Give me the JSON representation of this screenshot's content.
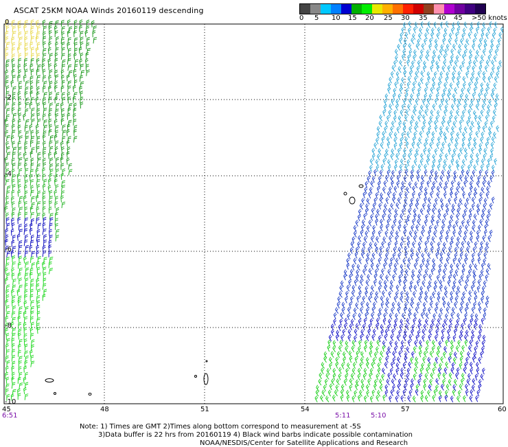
{
  "title": "ASCAT 25KM NOAA Winds 20160119 descending",
  "colorbar": {
    "colors": [
      "#444444",
      "#888888",
      "#00c8ff",
      "#0080ff",
      "#0000d0",
      "#00b000",
      "#00ee00",
      "#e8e800",
      "#ffb000",
      "#ff7000",
      "#ff2000",
      "#d00000",
      "#904020",
      "#ff90b0",
      "#b000d0",
      "#7000a0",
      "#400080",
      "#200050"
    ],
    "labels": [
      "0",
      "5",
      "10",
      "15",
      "20",
      "25",
      "30",
      "35",
      "40",
      "45",
      ">50 knots"
    ]
  },
  "axes": {
    "x_ticks": [
      "45",
      "48",
      "51",
      "54",
      "57",
      "60"
    ],
    "y_ticks": [
      "0",
      "-2",
      "-4",
      "-6",
      "-8",
      "-10"
    ]
  },
  "time_labels": [
    "6:51",
    "5:11",
    "5:10"
  ],
  "notes": [
    "Note: 1) Times are GMT 2)Times along bottom correspond to measurement at -5S",
    "3)Data buffer is 22 hrs from 20160119 4) Black wind barbs indicate possible contamination",
    "NOAA/NESDIS/Center for Satellite Applications and Research"
  ]
}
